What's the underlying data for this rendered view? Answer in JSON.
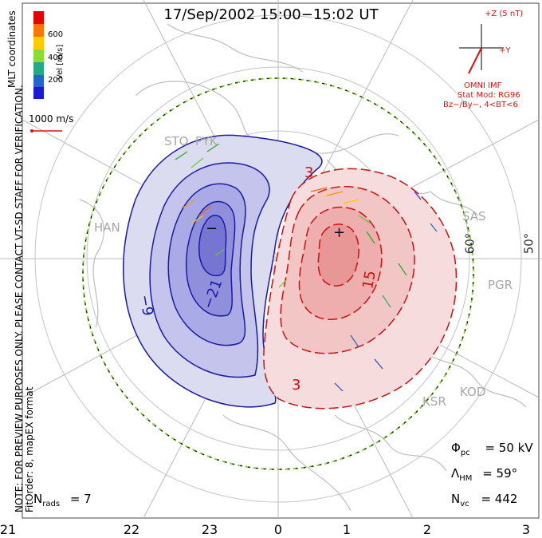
{
  "title": "17/Sep/2002  15:00−15:02  UT",
  "side_note": {
    "line1": "NOTE: FOR PREVIEW PURPOSES ONLY. PLEASE CONTACT VT-SD STAFF FOR VERIFICATION.",
    "line2": "FitOrder: 8, mapEX format"
  },
  "coord_label": "MLT coordinates",
  "colorbar": {
    "label": "Vel [m/s]",
    "ticks": [
      "600",
      "400",
      "200"
    ]
  },
  "ref_vector": "1000 m/s",
  "imf": {
    "plus_z": "+Z (5 nT)",
    "plus_y": "+Y",
    "omni": "OMNI IMF",
    "stat_mod": "Stat Mod: RG96",
    "conditions": "Bz−/By−, 4<BT<6"
  },
  "mlt_ticks": [
    "21",
    "22",
    "23",
    "0",
    "1",
    "2",
    "3"
  ],
  "lat_labels": [
    "60°",
    "50°"
  ],
  "stations": [
    "SAS",
    "PGR",
    "KOD",
    "KSR",
    "HAN",
    "STO",
    "PYK"
  ],
  "contour_labels": {
    "neg": [
      "−9",
      "−21"
    ],
    "pos": [
      "15",
      "3",
      "3"
    ]
  },
  "extrema": {
    "min": "−",
    "max": "+"
  },
  "stats": {
    "phi_label": "Φ",
    "phi_sub": "pc",
    "phi_value": "= 50 kV",
    "lambda_label": "Λ",
    "lambda_sub": "HM",
    "lambda_value": "= 59°",
    "nvc_label": "N",
    "nvc_sub": "vc",
    "nvc_value": "= 442",
    "nrads_label": "N",
    "nrads_sub": "rads",
    "nrads_value": "= 7"
  },
  "colors": {
    "negative_contour": "#1a1aa8",
    "positive_contour": "#cc1111",
    "neg_fill": "#c8c8ee",
    "pos_fill": "#f4c4c4",
    "boundary": "#88cc44"
  }
}
